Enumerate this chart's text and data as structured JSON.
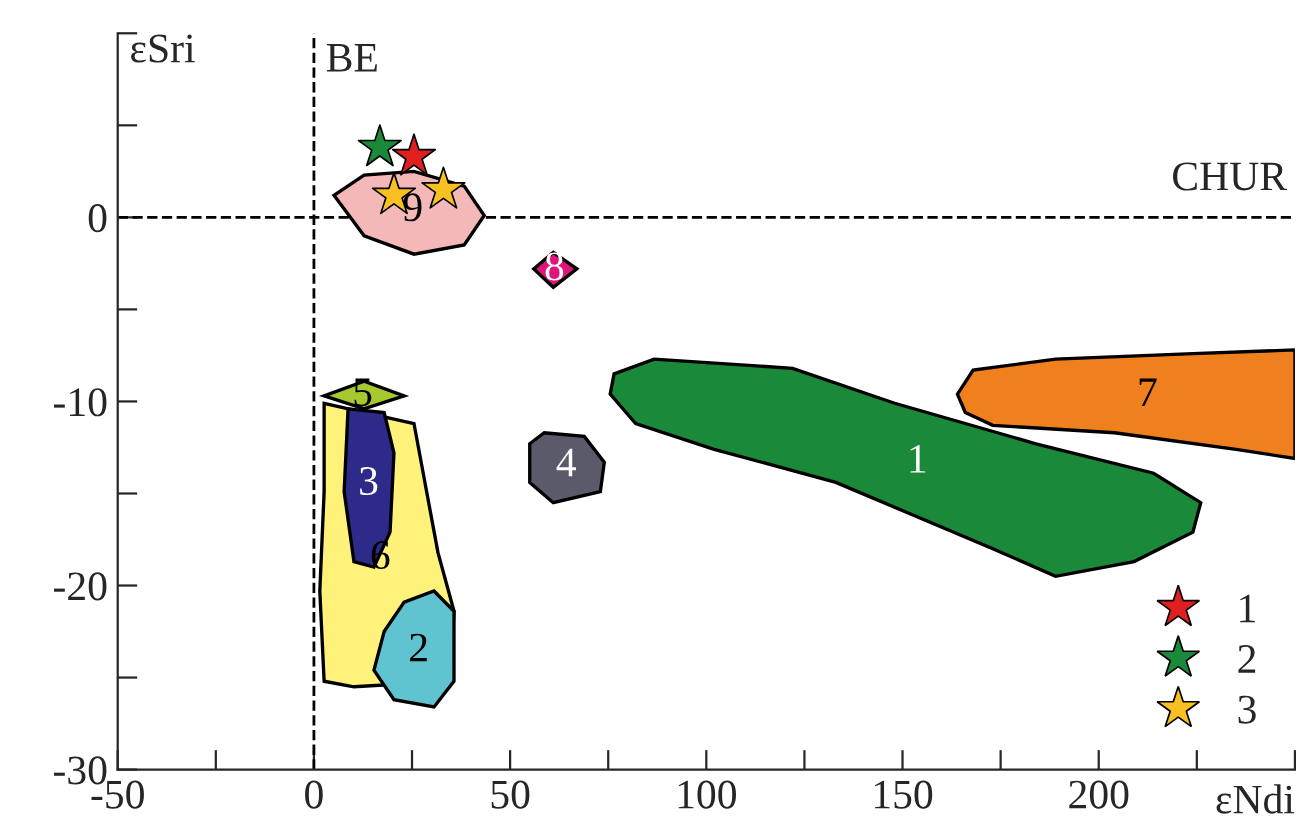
{
  "chart_data": {
    "type": "scatter",
    "xlabel": "εNdi",
    "ylabel": "εSri",
    "xlim": [
      -50,
      250
    ],
    "ylim": [
      -30,
      10
    ],
    "xticks": [
      -50,
      {
        "value": -25,
        "label": null
      },
      0,
      {
        "value": 25,
        "label": null
      },
      50,
      {
        "value": 75,
        "label": null
      },
      100,
      {
        "value": 125,
        "label": null
      },
      150,
      {
        "value": 175,
        "label": null
      },
      200,
      {
        "value": 225,
        "label": null
      },
      {
        "value": 250,
        "label": null
      }
    ],
    "yticks": [
      -30,
      {
        "value": -25,
        "label": null
      },
      -20,
      {
        "value": -15,
        "label": null
      },
      -10,
      {
        "value": -5,
        "label": null
      },
      0,
      {
        "value": 5,
        "label": null
      },
      {
        "value": 10,
        "label": null
      }
    ],
    "legend": "bottom right",
    "ref_lines": [
      {
        "axis": "x",
        "value": 0,
        "label": "BE",
        "line_style": "dashed",
        "color": "#000000"
      },
      {
        "axis": "y",
        "value": 0,
        "label": "CHUR",
        "line_style": "dashed",
        "color": "#000000"
      }
    ],
    "series": [
      {
        "name": "1",
        "marker": "star",
        "color": "#e02020",
        "x": [
          25.5
        ],
        "values": [
          3.3
        ]
      },
      {
        "name": "2",
        "marker": "star",
        "color": "#1a8a3a",
        "x": [
          16.8
        ],
        "values": [
          3.8
        ]
      },
      {
        "name": "3",
        "marker": "star",
        "color": "#f8c020",
        "x": [
          20.4,
          33
        ],
        "values": [
          1.2,
          1.5
        ]
      },
      {
        "type": "area",
        "name": "1",
        "color": "#1a8a3a",
        "x": [
          76.5,
          86.7,
          122,
          148,
          184,
          214,
          226,
          224,
          209,
          189,
          173,
          133,
          102,
          82,
          75.5
        ],
        "values": [
          -8.5,
          -7.7,
          -8.2,
          -10.1,
          -12.3,
          -13.9,
          -15.5,
          -17.1,
          -18.7,
          -19.5,
          -18.0,
          -14.4,
          -12.6,
          -11.2,
          -9.6
        ]
      },
      {
        "type": "area",
        "name": "7",
        "color": "#f07f1e",
        "x": [
          164,
          168,
          189,
          224,
          250,
          250,
          235,
          204,
          173,
          166
        ],
        "values": [
          -9.6,
          -8.3,
          -7.7,
          -7.4,
          -7.2,
          -13.1,
          -12.6,
          -11.7,
          -11.3,
          -10.6
        ]
      },
      {
        "type": "area",
        "name": "9",
        "color": "#f4b8b8",
        "x": [
          5.1,
          12.8,
          25.5,
          38.3,
          43.4,
          38.3,
          25.5,
          12.8
        ],
        "values": [
          1.2,
          2.3,
          2.5,
          1.7,
          0.1,
          -1.5,
          -2.0,
          -1.0
        ]
      },
      {
        "type": "area",
        "name": "8",
        "color": "#e0147a",
        "x": [
          56,
          61,
          67,
          61
        ],
        "values": [
          -2.8,
          -1.9,
          -2.8,
          -3.8
        ]
      },
      {
        "type": "area",
        "name": "4",
        "color": "#5a5a6a",
        "x": [
          55,
          58.7,
          68.9,
          74,
          73,
          61,
          55
        ],
        "values": [
          -12.3,
          -11.7,
          -11.9,
          -13.3,
          -14.9,
          -15.5,
          -14.4
        ]
      },
      {
        "type": "area",
        "name": "6",
        "color": "#fff27a",
        "x": [
          2.6,
          25.5,
          31.6,
          35.7,
          34.7,
          10.2,
          2.6,
          1.5,
          2.6
        ],
        "values": [
          -10.1,
          -11.2,
          -18.2,
          -21.4,
          -25.2,
          -25.5,
          -25.2,
          -20.3,
          -14.9
        ]
      },
      {
        "type": "area",
        "name": "5",
        "color": "#a8c832",
        "x": [
          2.6,
          12.8,
          23,
          12.8
        ],
        "values": [
          -9.7,
          -8.9,
          -9.7,
          -10.4
        ]
      },
      {
        "type": "area",
        "name": "3",
        "color": "#2e2a8a",
        "x": [
          8.7,
          17.9,
          20.4,
          19.4,
          15.3,
          10.2,
          7.7
        ],
        "values": [
          -10.4,
          -10.6,
          -12.8,
          -17.1,
          -19.0,
          -18.7,
          -14.9
        ]
      },
      {
        "type": "area",
        "name": "2",
        "color": "#5fc4d0",
        "x": [
          17.9,
          23,
          30.6,
          35.7,
          35.7,
          30.6,
          20.4,
          15.3
        ],
        "values": [
          -22.5,
          -20.9,
          -20.3,
          -21.4,
          -25.2,
          -26.6,
          -26.2,
          -24.6
        ]
      }
    ]
  }
}
